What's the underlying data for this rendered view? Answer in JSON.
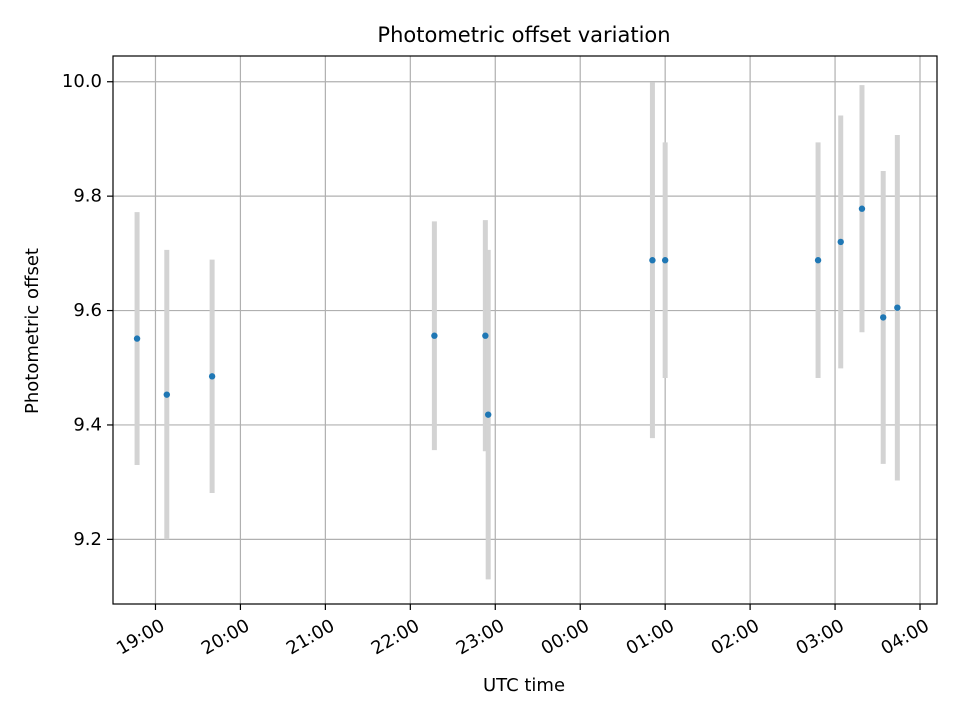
{
  "chart_data": {
    "type": "scatter",
    "title": "Photometric offset variation",
    "xlabel": "UTC time",
    "ylabel": "Photometric offset",
    "x_ticks": [
      "19:00",
      "20:00",
      "21:00",
      "22:00",
      "23:00",
      "00:00",
      "01:00",
      "02:00",
      "03:00",
      "04:00"
    ],
    "y_ticks": [
      "9.2",
      "9.4",
      "9.6",
      "9.8",
      "10.0"
    ],
    "ylim": [
      9.087,
      10.045
    ],
    "xlim": [
      "18:30",
      "04:12"
    ],
    "grid": true,
    "point_color": "#1f77b4",
    "errorbar_color": "#d3d3d3",
    "series": [
      {
        "points": [
          {
            "x": "18:47",
            "y": 9.551,
            "err": 0.221
          },
          {
            "x": "19:08",
            "y": 9.453,
            "err": 0.253
          },
          {
            "x": "19:40",
            "y": 9.485,
            "err": 0.204
          },
          {
            "x": "22:17",
            "y": 9.556,
            "err": 0.2
          },
          {
            "x": "22:53",
            "y": 9.556,
            "err": 0.202
          },
          {
            "x": "22:55",
            "y": 9.418,
            "err": 0.288
          },
          {
            "x": "00:51",
            "y": 9.688,
            "err": 0.311
          },
          {
            "x": "01:00",
            "y": 9.688,
            "err": 0.206
          },
          {
            "x": "02:48",
            "y": 9.688,
            "err": 0.206
          },
          {
            "x": "03:04",
            "y": 9.72,
            "err": 0.221
          },
          {
            "x": "03:19",
            "y": 9.778,
            "err": 0.216
          },
          {
            "x": "03:34",
            "y": 9.588,
            "err": 0.256
          },
          {
            "x": "03:44",
            "y": 9.605,
            "err": 0.302
          }
        ]
      }
    ]
  }
}
